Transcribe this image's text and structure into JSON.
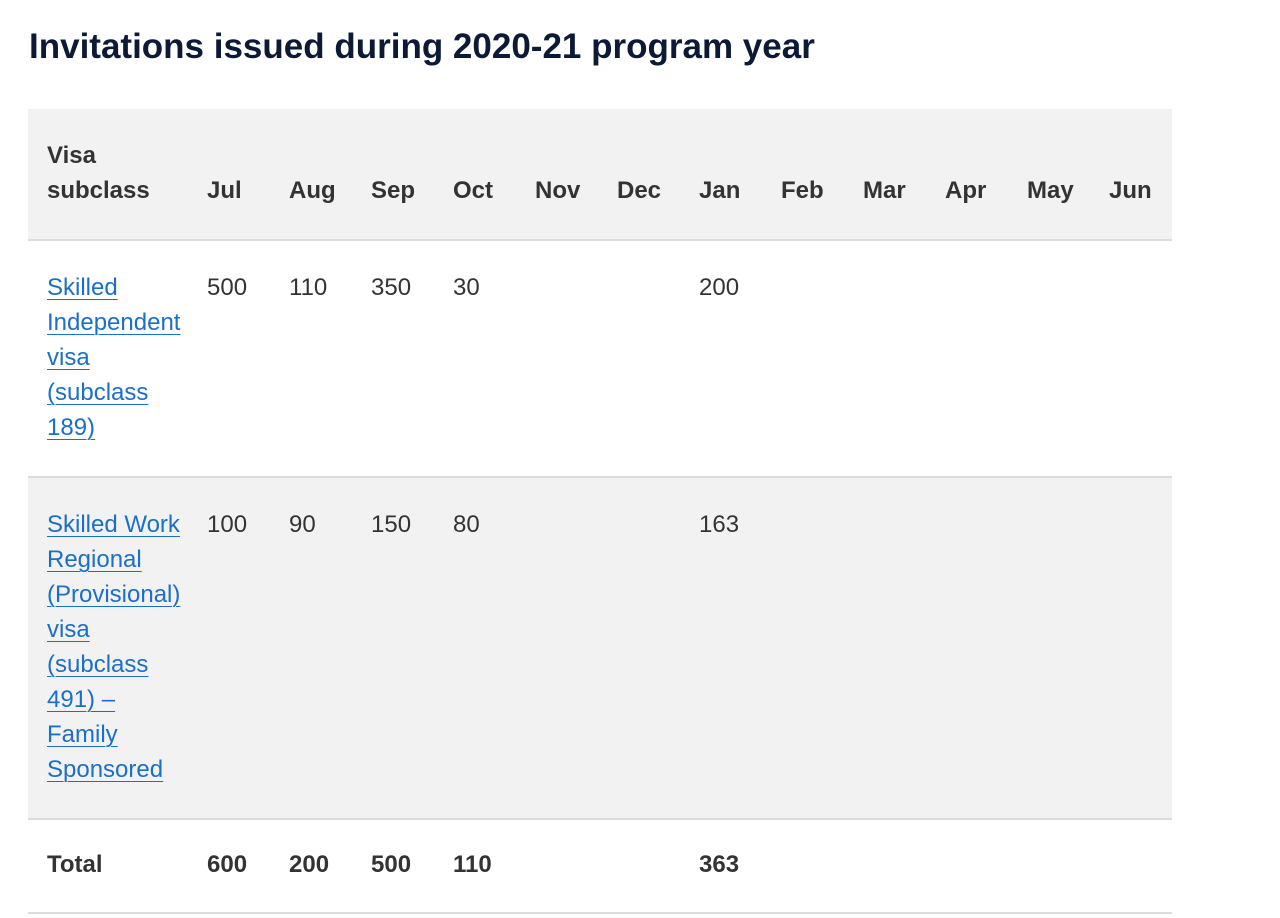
{
  "title": "Invitations issued during 2020-21 program year",
  "table": {
    "columns": [
      "Visa subclass",
      "Jul",
      "Aug",
      "Sep",
      "Oct",
      "Nov",
      "Dec",
      "Jan",
      "Feb",
      "Mar",
      "Apr",
      "May",
      "Jun"
    ],
    "rows": [
      {
        "label": "Skilled Independent visa (subclass 189)",
        "cells": [
          500,
          110,
          350,
          30,
          null,
          null,
          200,
          null,
          null,
          null,
          null,
          null
        ]
      },
      {
        "label": "Skilled Work Regional (Provisional) visa (subclass 491) – Family Sponsored",
        "cells": [
          100,
          90,
          150,
          80,
          null,
          null,
          163,
          null,
          null,
          null,
          null,
          null
        ]
      }
    ],
    "total": {
      "label": "Total",
      "cells": [
        600,
        200,
        500,
        110,
        null,
        null,
        363,
        null,
        null,
        null,
        null,
        null
      ]
    }
  }
}
